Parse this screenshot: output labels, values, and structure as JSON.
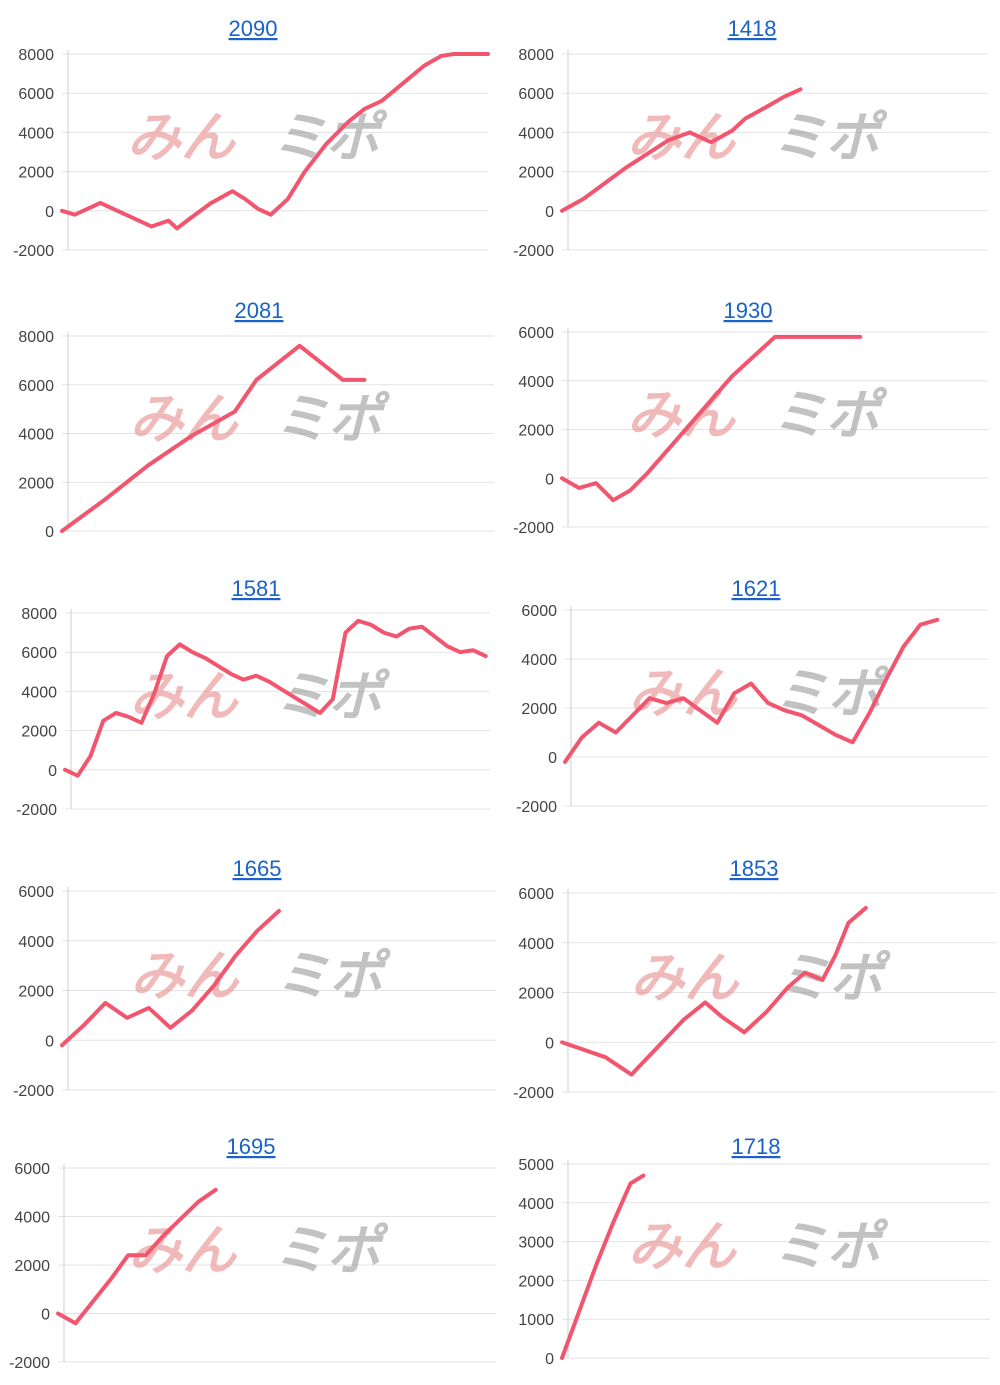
{
  "colors": {
    "series": "#f2566f",
    "title_link": "#1a62c9",
    "grid": "#e3e3e3"
  },
  "watermark": {
    "main": "みん",
    "sub": "ミポ"
  },
  "chart_data": [
    {
      "type": "line",
      "title": "2090",
      "grid": true,
      "ylim": [
        -2000,
        8000
      ],
      "yticks": [
        "8000",
        "6000",
        "4000",
        "2000",
        "0",
        "-2000"
      ],
      "series": [
        {
          "x": [
            0,
            3,
            9,
            15,
            21,
            25,
            27,
            30,
            35,
            40,
            43,
            46,
            49,
            53,
            57,
            62,
            67,
            71,
            75,
            80,
            85,
            89,
            92,
            95,
            100
          ],
          "y": [
            0,
            -200,
            400,
            -200,
            -800,
            -500,
            -900,
            -400,
            400,
            1000,
            600,
            100,
            -200,
            600,
            2000,
            3400,
            4500,
            5200,
            5600,
            6500,
            7400,
            7900,
            8000,
            8000,
            8000
          ]
        }
      ],
      "x_extent": 100
    },
    {
      "type": "line",
      "title": "1418",
      "grid": true,
      "ylim": [
        -2000,
        8000
      ],
      "yticks": [
        "8000",
        "6000",
        "4000",
        "2000",
        "0",
        "-2000"
      ],
      "series": [
        {
          "x": [
            0,
            5,
            10,
            15,
            20,
            25,
            30,
            35,
            40,
            43,
            48,
            52,
            56
          ],
          "y": [
            0,
            600,
            1400,
            2200,
            2900,
            3600,
            4000,
            3500,
            4100,
            4700,
            5300,
            5800,
            6200
          ]
        }
      ],
      "x_extent": 100
    },
    {
      "type": "line",
      "title": "2081",
      "grid": true,
      "ylim": [
        0,
        8000
      ],
      "yticks": [
        "8000",
        "6000",
        "4000",
        "2000",
        "0"
      ],
      "series": [
        {
          "x": [
            0,
            10,
            20,
            30,
            35,
            40,
            45,
            50,
            55,
            60,
            65,
            70
          ],
          "y": [
            0,
            1300,
            2700,
            3900,
            4400,
            4900,
            6200,
            6900,
            7600,
            6900,
            6200,
            6200
          ]
        }
      ],
      "x_extent": 100
    },
    {
      "type": "line",
      "title": "1930",
      "grid": true,
      "ylim": [
        -2000,
        6000
      ],
      "yticks": [
        "6000",
        "4000",
        "2000",
        "0",
        "-2000"
      ],
      "series": [
        {
          "x": [
            0,
            4,
            8,
            12,
            16,
            20,
            25,
            30,
            35,
            40,
            45,
            50,
            55,
            60,
            65,
            70
          ],
          "y": [
            0,
            -400,
            -200,
            -900,
            -500,
            200,
            1200,
            2200,
            3200,
            4200,
            5000,
            5800,
            5800,
            5800,
            5800,
            5800
          ]
        }
      ],
      "x_extent": 100
    },
    {
      "type": "line",
      "title": "1581",
      "grid": true,
      "ylim": [
        -2000,
        8000
      ],
      "yticks": [
        "8000",
        "6000",
        "4000",
        "2000",
        "0",
        "-2000"
      ],
      "series": [
        {
          "x": [
            0,
            3,
            6,
            9,
            12,
            15,
            18,
            21,
            24,
            27,
            30,
            33,
            36,
            39,
            42,
            45,
            48,
            51,
            54,
            57,
            60,
            63,
            66,
            69,
            72,
            75,
            78,
            81,
            84,
            87,
            90,
            93,
            96,
            99
          ],
          "y": [
            0,
            -300,
            700,
            2500,
            2900,
            2700,
            2400,
            3900,
            5800,
            6400,
            6000,
            5700,
            5300,
            4900,
            4600,
            4800,
            4500,
            4100,
            3700,
            3300,
            2900,
            3600,
            7000,
            7600,
            7400,
            7000,
            6800,
            7200,
            7300,
            6800,
            6300,
            6000,
            6100,
            5800
          ]
        }
      ],
      "x_extent": 100
    },
    {
      "type": "line",
      "title": "1621",
      "grid": true,
      "ylim": [
        -2000,
        6000
      ],
      "yticks": [
        "6000",
        "4000",
        "2000",
        "0",
        "-2000"
      ],
      "series": [
        {
          "x": [
            0,
            4,
            8,
            12,
            16,
            20,
            24,
            28,
            32,
            36,
            40,
            44,
            48,
            52,
            56,
            60,
            64,
            68,
            72,
            76,
            80,
            84,
            88
          ],
          "y": [
            -200,
            800,
            1400,
            1000,
            1700,
            2400,
            2200,
            2400,
            1900,
            1400,
            2600,
            3000,
            2200,
            1900,
            1700,
            1300,
            900,
            600,
            1800,
            3200,
            4500,
            5400,
            5600
          ]
        }
      ],
      "x_extent": 100
    },
    {
      "type": "line",
      "title": "1665",
      "grid": true,
      "ylim": [
        -2000,
        6000
      ],
      "yticks": [
        "6000",
        "4000",
        "2000",
        "0",
        "-2000"
      ],
      "series": [
        {
          "x": [
            0,
            5,
            10,
            15,
            20,
            25,
            30,
            35,
            40,
            45,
            50
          ],
          "y": [
            -200,
            600,
            1500,
            900,
            1300,
            500,
            1200,
            2200,
            3400,
            4400,
            5200
          ]
        }
      ],
      "x_extent": 100
    },
    {
      "type": "line",
      "title": "1853",
      "grid": true,
      "ylim": [
        -2000,
        6000
      ],
      "yticks": [
        "6000",
        "4000",
        "2000",
        "0",
        "-2000"
      ],
      "series": [
        {
          "x": [
            0,
            10,
            16,
            22,
            28,
            33,
            37,
            42,
            47,
            52,
            56,
            60,
            63,
            66,
            70
          ],
          "y": [
            0,
            -600,
            -1300,
            -200,
            900,
            1600,
            1000,
            400,
            1200,
            2200,
            2800,
            2500,
            3500,
            4800,
            5400
          ]
        }
      ],
      "x_extent": 100
    },
    {
      "type": "line",
      "title": "1695",
      "grid": true,
      "ylim": [
        -2000,
        6000
      ],
      "yticks": [
        "6000",
        "4000",
        "2000",
        "0",
        "-2000"
      ],
      "series": [
        {
          "x": [
            0,
            4,
            8,
            12,
            16,
            20,
            24,
            28,
            32,
            36
          ],
          "y": [
            0,
            -400,
            500,
            1400,
            2400,
            2400,
            3200,
            3900,
            4600,
            5100
          ]
        }
      ],
      "x_extent": 100
    },
    {
      "type": "line",
      "title": "1718",
      "grid": true,
      "ylim": [
        0,
        5000
      ],
      "yticks": [
        "5000",
        "4000",
        "3000",
        "2000",
        "1000",
        "0"
      ],
      "series": [
        {
          "x": [
            0,
            4,
            8,
            12,
            16,
            19
          ],
          "y": [
            0,
            1200,
            2400,
            3500,
            4500,
            4700
          ]
        }
      ],
      "x_extent": 100
    }
  ]
}
